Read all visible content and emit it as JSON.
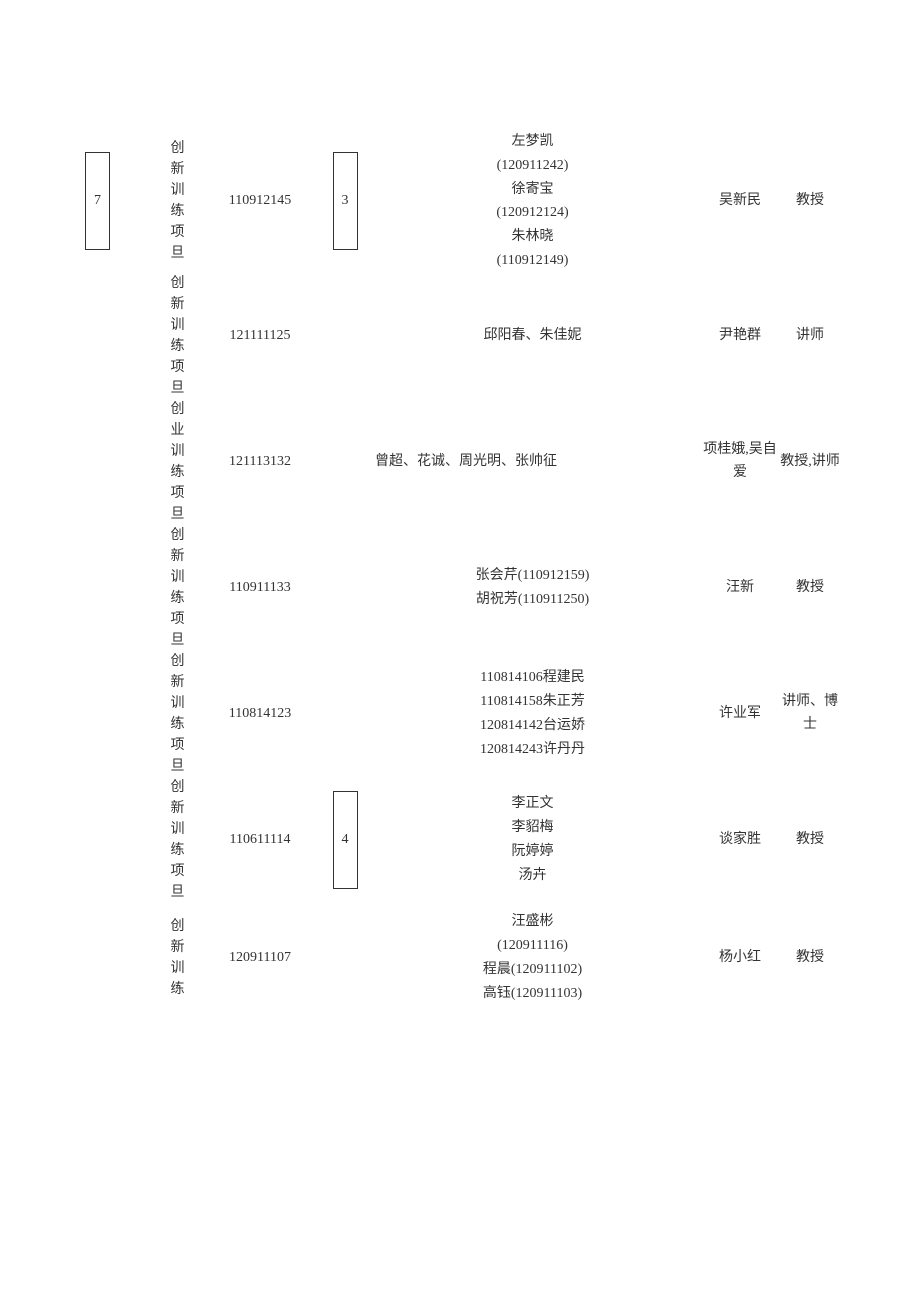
{
  "rows": [
    {
      "index": "7",
      "hasIndexBox": true,
      "type": "创新训练项旦",
      "id": "110912145",
      "num": "3",
      "hasNumBox": true,
      "members": [
        "左梦凯",
        "(120911242)",
        "徐寄宝",
        "(120912124)",
        "朱林晓",
        "(110912149)"
      ],
      "leader": "吴新民",
      "title": "教授"
    },
    {
      "index": "",
      "hasIndexBox": false,
      "type": "创新训练项旦",
      "id": "121111125",
      "num": "",
      "hasNumBox": false,
      "members": [
        "邱阳春、朱佳妮"
      ],
      "leader": "尹艳群",
      "title": "讲师"
    },
    {
      "index": "",
      "hasIndexBox": false,
      "type": "创业训练项旦",
      "id": "121113132",
      "num": "",
      "hasNumBox": false,
      "members": [
        "曾超、花诚、周光明、张帅征"
      ],
      "membersAlign": "left",
      "leader": "项桂娥,吴自爱",
      "title": "教授,讲师"
    },
    {
      "index": "",
      "hasIndexBox": false,
      "type": "创新训练项旦",
      "id": "110911133",
      "num": "",
      "hasNumBox": false,
      "members": [
        "张会芹(110912159)",
        "胡祝芳(110911250)"
      ],
      "leader": "汪新",
      "title": "教授"
    },
    {
      "index": "",
      "hasIndexBox": false,
      "type": "创新训练项旦",
      "id": "110814123",
      "num": "",
      "hasNumBox": false,
      "members": [
        "110814106程建民",
        "110814158朱正芳",
        "120814142台运娇",
        "120814243许丹丹"
      ],
      "leader": "许业军",
      "title": "讲师、博士"
    },
    {
      "index": "",
      "hasIndexBox": false,
      "type": "创新训练项旦",
      "id": "110611114",
      "num": "4",
      "hasNumBox": true,
      "members": [
        "李正文",
        "李貂梅",
        "阮婷婷",
        "汤卉"
      ],
      "leader": "谈家胜",
      "title": "教授"
    },
    {
      "index": "",
      "hasIndexBox": false,
      "type": "创新训练",
      "id": "120911107",
      "num": "",
      "hasNumBox": false,
      "members": [
        "汪盛彬",
        "(120911116)",
        "程晨(120911102)",
        "高钰(120911103)"
      ],
      "leader": "杨小红",
      "title": "教授"
    }
  ]
}
